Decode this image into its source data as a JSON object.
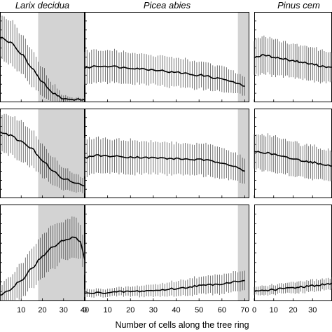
{
  "figure": {
    "xlabel": "Number of cells along the tree ring"
  },
  "chart_data": [
    {
      "type": "line",
      "title": "Larix decidua",
      "xlim": [
        0,
        40
      ],
      "xticks": [
        "10",
        "20",
        "30",
        "40"
      ],
      "rows": [
        {
          "shaded": [
            18,
            40
          ],
          "ylim": [
            0,
            1
          ],
          "series": [
            {
              "x": [
                0,
                5,
                10,
                15,
                20,
                25,
                30,
                35,
                40
              ],
              "mean": [
                0.72,
                0.66,
                0.54,
                0.38,
                0.22,
                0.1,
                0.04,
                0.03,
                0.03
              ],
              "err": [
                0.24,
                0.24,
                0.22,
                0.2,
                0.16,
                0.1,
                0.04,
                0.02,
                0.02
              ]
            }
          ]
        },
        {
          "shaded": [
            18,
            40
          ],
          "ylim": [
            0,
            1
          ],
          "series": [
            {
              "x": [
                0,
                5,
                10,
                15,
                20,
                25,
                30,
                35,
                40
              ],
              "mean": [
                0.74,
                0.7,
                0.63,
                0.55,
                0.42,
                0.3,
                0.22,
                0.18,
                0.14
              ],
              "err": [
                0.22,
                0.22,
                0.22,
                0.2,
                0.18,
                0.16,
                0.12,
                0.1,
                0.08
              ]
            }
          ]
        },
        {
          "shaded": [
            18,
            40
          ],
          "ylim": [
            0,
            1
          ],
          "series": [
            {
              "x": [
                0,
                5,
                10,
                15,
                20,
                25,
                30,
                35,
                38,
                40
              ],
              "mean": [
                0.06,
                0.12,
                0.22,
                0.34,
                0.46,
                0.56,
                0.63,
                0.66,
                0.62,
                0.42
              ],
              "err": [
                0.1,
                0.14,
                0.18,
                0.2,
                0.22,
                0.22,
                0.2,
                0.2,
                0.18,
                0.16
              ]
            }
          ]
        }
      ]
    },
    {
      "type": "line",
      "title": "Picea abies",
      "xlim": [
        0,
        72
      ],
      "xticks": [
        "0",
        "10",
        "20",
        "30",
        "40",
        "50",
        "60",
        "70"
      ],
      "rows": [
        {
          "shaded": [
            67,
            72
          ],
          "ylim": [
            0,
            1
          ],
          "series": [
            {
              "x": [
                0,
                5,
                10,
                20,
                30,
                40,
                50,
                60,
                65,
                70
              ],
              "mean": [
                0.38,
                0.4,
                0.4,
                0.38,
                0.36,
                0.33,
                0.3,
                0.26,
                0.22,
                0.18
              ],
              "err": [
                0.18,
                0.18,
                0.18,
                0.17,
                0.16,
                0.16,
                0.15,
                0.14,
                0.12,
                0.1
              ]
            }
          ]
        },
        {
          "shaded": [
            67,
            72
          ],
          "ylim": [
            0,
            1
          ],
          "series": [
            {
              "x": [
                0,
                5,
                10,
                20,
                30,
                40,
                50,
                60,
                65,
                70
              ],
              "mean": [
                0.45,
                0.48,
                0.47,
                0.46,
                0.45,
                0.44,
                0.43,
                0.4,
                0.36,
                0.3
              ],
              "err": [
                0.2,
                0.2,
                0.19,
                0.19,
                0.18,
                0.18,
                0.18,
                0.17,
                0.16,
                0.14
              ]
            }
          ]
        },
        {
          "shaded": [
            67,
            72
          ],
          "ylim": [
            0,
            1
          ],
          "series": [
            {
              "x": [
                0,
                10,
                20,
                30,
                40,
                50,
                60,
                65,
                70
              ],
              "mean": [
                0.08,
                0.09,
                0.1,
                0.11,
                0.13,
                0.16,
                0.18,
                0.2,
                0.22
              ],
              "err": [
                0.04,
                0.04,
                0.05,
                0.06,
                0.08,
                0.09,
                0.1,
                0.1,
                0.1
              ]
            }
          ]
        }
      ]
    },
    {
      "type": "line",
      "title": "Pinus cem",
      "xlim": [
        0,
        40
      ],
      "xticks": [
        "0",
        "10",
        "20",
        "30"
      ],
      "rows": [
        {
          "shaded": null,
          "ylim": [
            0,
            1
          ],
          "series": [
            {
              "x": [
                0,
                5,
                10,
                15,
                20,
                25,
                30,
                35,
                40
              ],
              "mean": [
                0.5,
                0.52,
                0.5,
                0.48,
                0.46,
                0.44,
                0.42,
                0.4,
                0.38
              ],
              "err": [
                0.2,
                0.2,
                0.2,
                0.19,
                0.19,
                0.18,
                0.18,
                0.18,
                0.17
              ]
            }
          ]
        },
        {
          "shaded": null,
          "ylim": [
            0,
            1
          ],
          "series": [
            {
              "x": [
                0,
                5,
                10,
                15,
                20,
                25,
                30,
                35,
                40
              ],
              "mean": [
                0.52,
                0.51,
                0.49,
                0.46,
                0.44,
                0.42,
                0.4,
                0.38,
                0.36
              ],
              "err": [
                0.2,
                0.2,
                0.2,
                0.19,
                0.19,
                0.18,
                0.18,
                0.17,
                0.17
              ]
            }
          ]
        },
        {
          "shaded": null,
          "ylim": [
            0,
            1
          ],
          "series": [
            {
              "x": [
                0,
                5,
                10,
                15,
                20,
                25,
                30,
                35,
                40
              ],
              "mean": [
                0.1,
                0.11,
                0.12,
                0.13,
                0.14,
                0.15,
                0.16,
                0.17,
                0.18
              ],
              "err": [
                0.04,
                0.05,
                0.05,
                0.05,
                0.06,
                0.06,
                0.06,
                0.06,
                0.06
              ]
            }
          ]
        }
      ]
    }
  ]
}
